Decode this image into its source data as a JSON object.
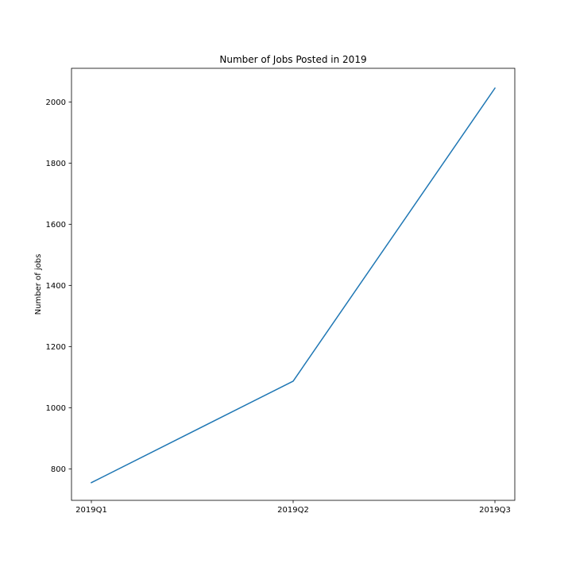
{
  "chart_data": {
    "type": "line",
    "title": "Number of Jobs Posted in 2019",
    "xlabel": "",
    "ylabel": "Number of jobs",
    "categories": [
      "2019Q1",
      "2019Q2",
      "2019Q3"
    ],
    "series": [
      {
        "values": [
          755,
          1087,
          2045
        ],
        "color": "#1f77b4"
      }
    ],
    "ylim": [
      697,
      2110
    ],
    "yticks": [
      800,
      1000,
      1200,
      1400,
      1600,
      1800,
      2000
    ],
    "grid": false,
    "legend": "none"
  }
}
